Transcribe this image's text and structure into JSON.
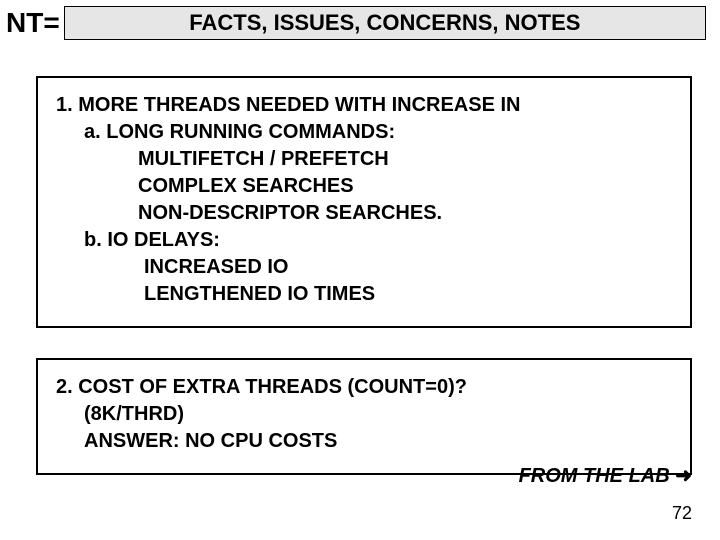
{
  "header": {
    "prefix": "NT=",
    "title": "FACTS, ISSUES, CONCERNS, NOTES"
  },
  "box1": {
    "line1": "1.  MORE THREADS NEEDED WITH INCREASE IN",
    "a": "a. LONG RUNNING COMMANDS:",
    "a1": "MULTIFETCH / PREFETCH",
    "a2": "COMPLEX SEARCHES",
    "a3": "NON-DESCRIPTOR SEARCHES.",
    "b": "b. IO DELAYS:",
    "b1": "INCREASED IO",
    "b2": "LENGTHENED IO TIMES"
  },
  "box2": {
    "line1": "2.  COST OF EXTRA THREADS (COUNT=0)?",
    "line2": "(8K/THRD)",
    "line3": "ANSWER:  NO CPU COSTS"
  },
  "footer": {
    "text": "FROM THE LAB ",
    "arrow": "➜"
  },
  "page": "72",
  "colors": {
    "header_bg": "#e6e6e6",
    "border": "#000000",
    "text": "#000000",
    "page_bg": "#ffffff"
  },
  "fonts": {
    "title_size_pt": 22,
    "label_size_pt": 28,
    "body_size_pt": 20,
    "footer_size_pt": 20,
    "page_size_pt": 18,
    "family": "Arial"
  }
}
